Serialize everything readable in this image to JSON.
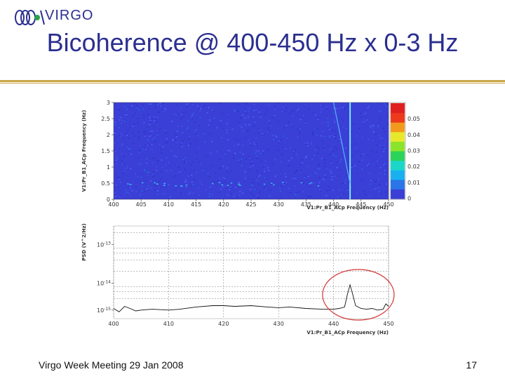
{
  "logo": {
    "text": "VIRGO"
  },
  "slide": {
    "title": "Bicoherence @ 400-450 Hz x 0-3 Hz",
    "footer": "Virgo Week Meeting 29 Jan 2008",
    "page_number": "17"
  },
  "colors": {
    "title": "#2b2f8f",
    "rule": "#c9a84a",
    "heatmap_bg": "#3a3fd6",
    "highlight_circle": "#d33333"
  },
  "chart_data": [
    {
      "type": "heatmap",
      "title": "",
      "xlabel": "V1:Pr_B1_ACp Frequency (Hz)",
      "ylabel": "V1:Pr_B1_ACp Frequency (Hz)",
      "xlim": [
        400,
        450
      ],
      "ylim": [
        0,
        3
      ],
      "x_ticks": [
        400,
        405,
        410,
        415,
        420,
        425,
        430,
        435,
        440,
        445,
        450
      ],
      "y_ticks": [
        0,
        0.5,
        1,
        1.5,
        2,
        2.5,
        3
      ],
      "y_tick_labels": [
        "0",
        "0.5",
        "1",
        "1.5",
        "2",
        "2.5",
        "3"
      ],
      "colorbar": {
        "min": 0,
        "max": 0.06,
        "ticks": [
          0,
          0.01,
          0.02,
          0.03,
          0.04,
          0.05
        ],
        "tick_labels": [
          "0",
          "0.01",
          "0.02",
          "0.03",
          "0.04",
          "0.05"
        ]
      },
      "features": [
        {
          "x": 443,
          "y_range": [
            0,
            3
          ],
          "value": 0.05
        },
        {
          "x_range": [
            440,
            443
          ],
          "y_range": [
            0.5,
            3
          ],
          "value": 0.03
        }
      ]
    },
    {
      "type": "line",
      "title": "",
      "xlabel": "V1:Pr_B1_ACp Frequency (Hz)",
      "ylabel": "PSD (V^2/Hz)",
      "xlim": [
        400,
        450
      ],
      "x_ticks": [
        400,
        410,
        420,
        430,
        440,
        450
      ],
      "y_scale": "log",
      "y_tick_labels": [
        "10^-13",
        "10^-14",
        "10^-15"
      ],
      "grid": true,
      "series": [
        {
          "x": [
            400,
            401,
            402,
            403,
            404,
            405,
            407,
            410,
            412,
            415,
            418,
            420,
            422,
            425,
            428,
            430,
            432,
            435,
            438,
            440,
            441,
            442,
            442.5,
            443,
            443.5,
            444,
            445,
            446,
            447,
            448,
            449,
            449.5,
            450
          ],
          "values": [
            2.2e-15,
            1.8e-15,
            2.5e-15,
            2.2e-15,
            1.9e-15,
            2e-15,
            2.1e-15,
            2e-15,
            2.1e-15,
            2.4e-15,
            2.6e-15,
            2.6e-15,
            2.5e-15,
            2.6e-15,
            2.4e-15,
            2.3e-15,
            2.4e-15,
            2.2e-15,
            2.1e-15,
            2.1e-15,
            2.2e-15,
            2.4e-15,
            5e-15,
            9e-15,
            5e-15,
            2.6e-15,
            2.2e-15,
            2.1e-15,
            2.2e-15,
            2e-15,
            2.1e-15,
            2.9e-15,
            2.5e-15
          ]
        }
      ],
      "annotations": [
        {
          "type": "circle",
          "x_range": [
            438,
            451
          ],
          "note": ""
        }
      ]
    }
  ]
}
